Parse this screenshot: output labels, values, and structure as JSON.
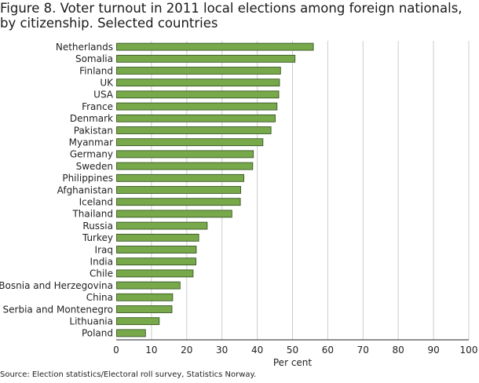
{
  "chart_data": {
    "type": "bar",
    "orientation": "horizontal",
    "title": "Figure 8. Voter turnout in 2011 local elections among foreign nationals, by citizenship. Selected countries",
    "xlabel": "Per cent",
    "ylabel": "",
    "xlim": [
      0,
      100
    ],
    "xticks": [
      0,
      10,
      20,
      30,
      40,
      50,
      60,
      70,
      80,
      90,
      100
    ],
    "grid": true,
    "categories": [
      "Netherlands",
      "Somalia",
      "Finland",
      "UK",
      "USA",
      "France",
      "Denmark",
      "Pakistan",
      "Myanmar",
      "Germany",
      "Sweden",
      "Philippines",
      "Afghanistan",
      "Iceland",
      "Thailand",
      "Russia",
      "Turkey",
      "Iraq",
      "India",
      "Chile",
      "Bosnia and Herzegovina",
      "China",
      "Serbia and Montenegro",
      "Lithuania",
      "Poland"
    ],
    "values": [
      55.8,
      50.6,
      46.5,
      46.2,
      46.0,
      45.5,
      45.0,
      43.8,
      41.5,
      38.8,
      38.6,
      36.1,
      35.2,
      35.1,
      32.7,
      25.7,
      23.3,
      22.6,
      22.5,
      21.7,
      18.0,
      15.9,
      15.7,
      12.1,
      8.2
    ],
    "bar_color": "#77a84a",
    "bar_edge_color": "#2f4a1c",
    "grid_color": "#cccccc"
  },
  "source": "Source: Election statistics/Electoral roll survey, Statistics Norway."
}
